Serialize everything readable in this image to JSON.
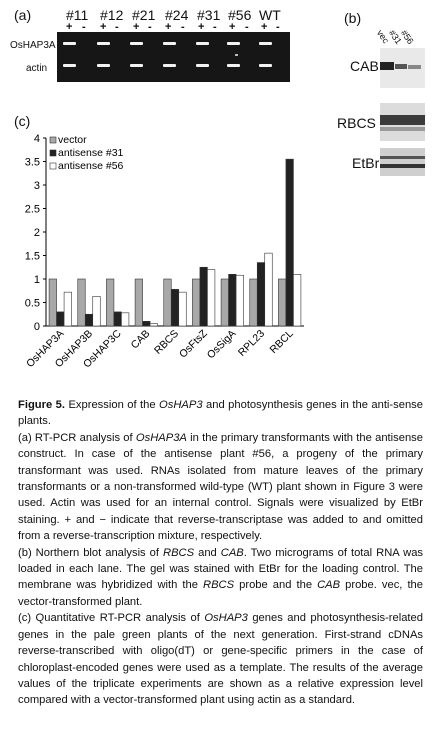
{
  "panel_a": {
    "label": "(a)",
    "lanes": [
      "#11",
      "#12",
      "#21",
      "#24",
      "#31",
      "#56",
      "WT"
    ],
    "plus": "+",
    "minus": "-",
    "rows": [
      "OsHAP3A",
      "actin"
    ]
  },
  "panel_b": {
    "label": "(b)",
    "lanes": [
      "vec",
      "#31",
      "#56"
    ],
    "blots": [
      "CAB",
      "RBCS",
      "EtBr"
    ]
  },
  "chart_data": {
    "type": "bar",
    "panel_label": "(c)",
    "categories": [
      "OsHAP3A",
      "OsHAP3B",
      "OsHAP3C",
      "CAB",
      "RBCS",
      "OsFtsZ",
      "OsSigA",
      "RPL23",
      "RBCL"
    ],
    "series": [
      {
        "name": "vector",
        "color": "#a8a8a8",
        "values": [
          1,
          1,
          1,
          1,
          1,
          1,
          1,
          1,
          1
        ]
      },
      {
        "name": "antisense #31",
        "color": "#222222",
        "values": [
          0.3,
          0.25,
          0.3,
          0.1,
          0.78,
          1.25,
          1.1,
          1.35,
          3.55
        ]
      },
      {
        "name": "antisense #56",
        "color": "#ffffff",
        "values": [
          0.72,
          0.63,
          0.28,
          0.05,
          0.72,
          1.2,
          1.08,
          1.55,
          1.1
        ]
      }
    ],
    "yticks": [
      "0",
      "0.5",
      "1",
      "1.5",
      "2",
      "2.5",
      "3",
      "3.5",
      "4"
    ],
    "ylim": [
      0,
      4
    ],
    "legend": "top-left",
    "grid": false
  },
  "caption": {
    "fig": "Figure 5.",
    "s1": " Expression of the ",
    "g1": "OsHAP3",
    "s2": " and photosynthesis genes in the anti-sense plants.",
    "a1": "(a) RT-PCR analysis of ",
    "a2": "OsHAP3A",
    "a3": " in the primary transformants with the antisense construct. In case of the antisense plant #56, a progeny of the primary transformant was used. RNAs isolated from mature leaves of the primary transformants or a non-transformed wild-type (WT) plant shown in Figure 3 were used. Actin was used for an internal control. Signals were visualized by EtBr staining. + and − indicate that reverse-transcriptase was added to and omitted from a reverse-transcription mixture, respectively.",
    "b1": "(b) Northern blot analysis of ",
    "b2": "RBCS",
    "b3": " and ",
    "b4": "CAB",
    "b5": ". Two micrograms of total RNA was loaded in each lane. The gel was stained with EtBr for the loading control. The membrane was hybridized with the ",
    "b6": "RBCS",
    "b7": " probe and the ",
    "b8": "CAB",
    "b9": " probe. vec, the vector-transformed plant.",
    "c1": "(c) Quantitative RT-PCR analysis of ",
    "c2": "OsHAP3",
    "c3": " genes and photosynthesis-related genes in the pale green plants of the next generation. First-strand cDNAs reverse-transcribed with oligo(dT) or gene-specific primers in the case of chloroplast-encoded genes were used as a template. The results of the average values of the triplicate experiments are shown as a relative expression level compared with a vector-transformed plant using actin as a standard."
  }
}
